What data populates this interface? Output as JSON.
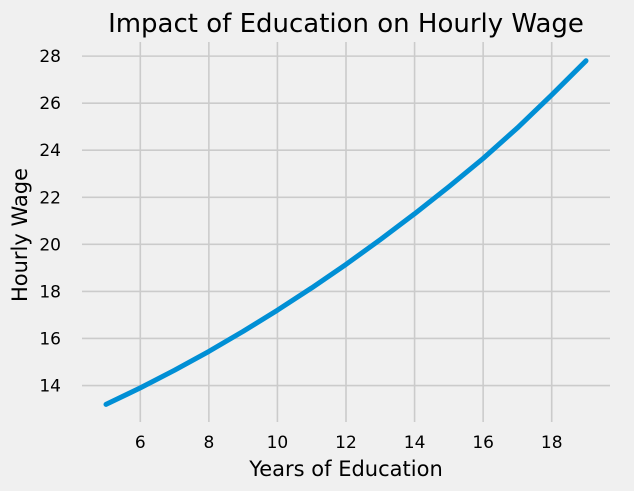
{
  "chart_data": {
    "type": "line",
    "title": "Impact of Education on Hourly Wage",
    "xlabel": "Years of Education",
    "ylabel": "Hourly Wage",
    "xlim": [
      4.3,
      19.7
    ],
    "ylim": [
      12.45,
      28.6
    ],
    "xticks": [
      6,
      8,
      10,
      12,
      14,
      16,
      18
    ],
    "yticks": [
      14,
      16,
      18,
      20,
      22,
      24,
      26,
      28
    ],
    "grid": true,
    "legend": "none",
    "series": [
      {
        "color": "#008fd5",
        "x": [
          5,
          6,
          7,
          8,
          9,
          10,
          11,
          12,
          13,
          14,
          15,
          16,
          17,
          18,
          19
        ],
        "y": [
          13.2,
          13.9,
          14.65,
          15.45,
          16.3,
          17.2,
          18.15,
          19.15,
          20.2,
          21.3,
          22.45,
          23.65,
          24.95,
          26.35,
          27.8
        ]
      }
    ]
  }
}
